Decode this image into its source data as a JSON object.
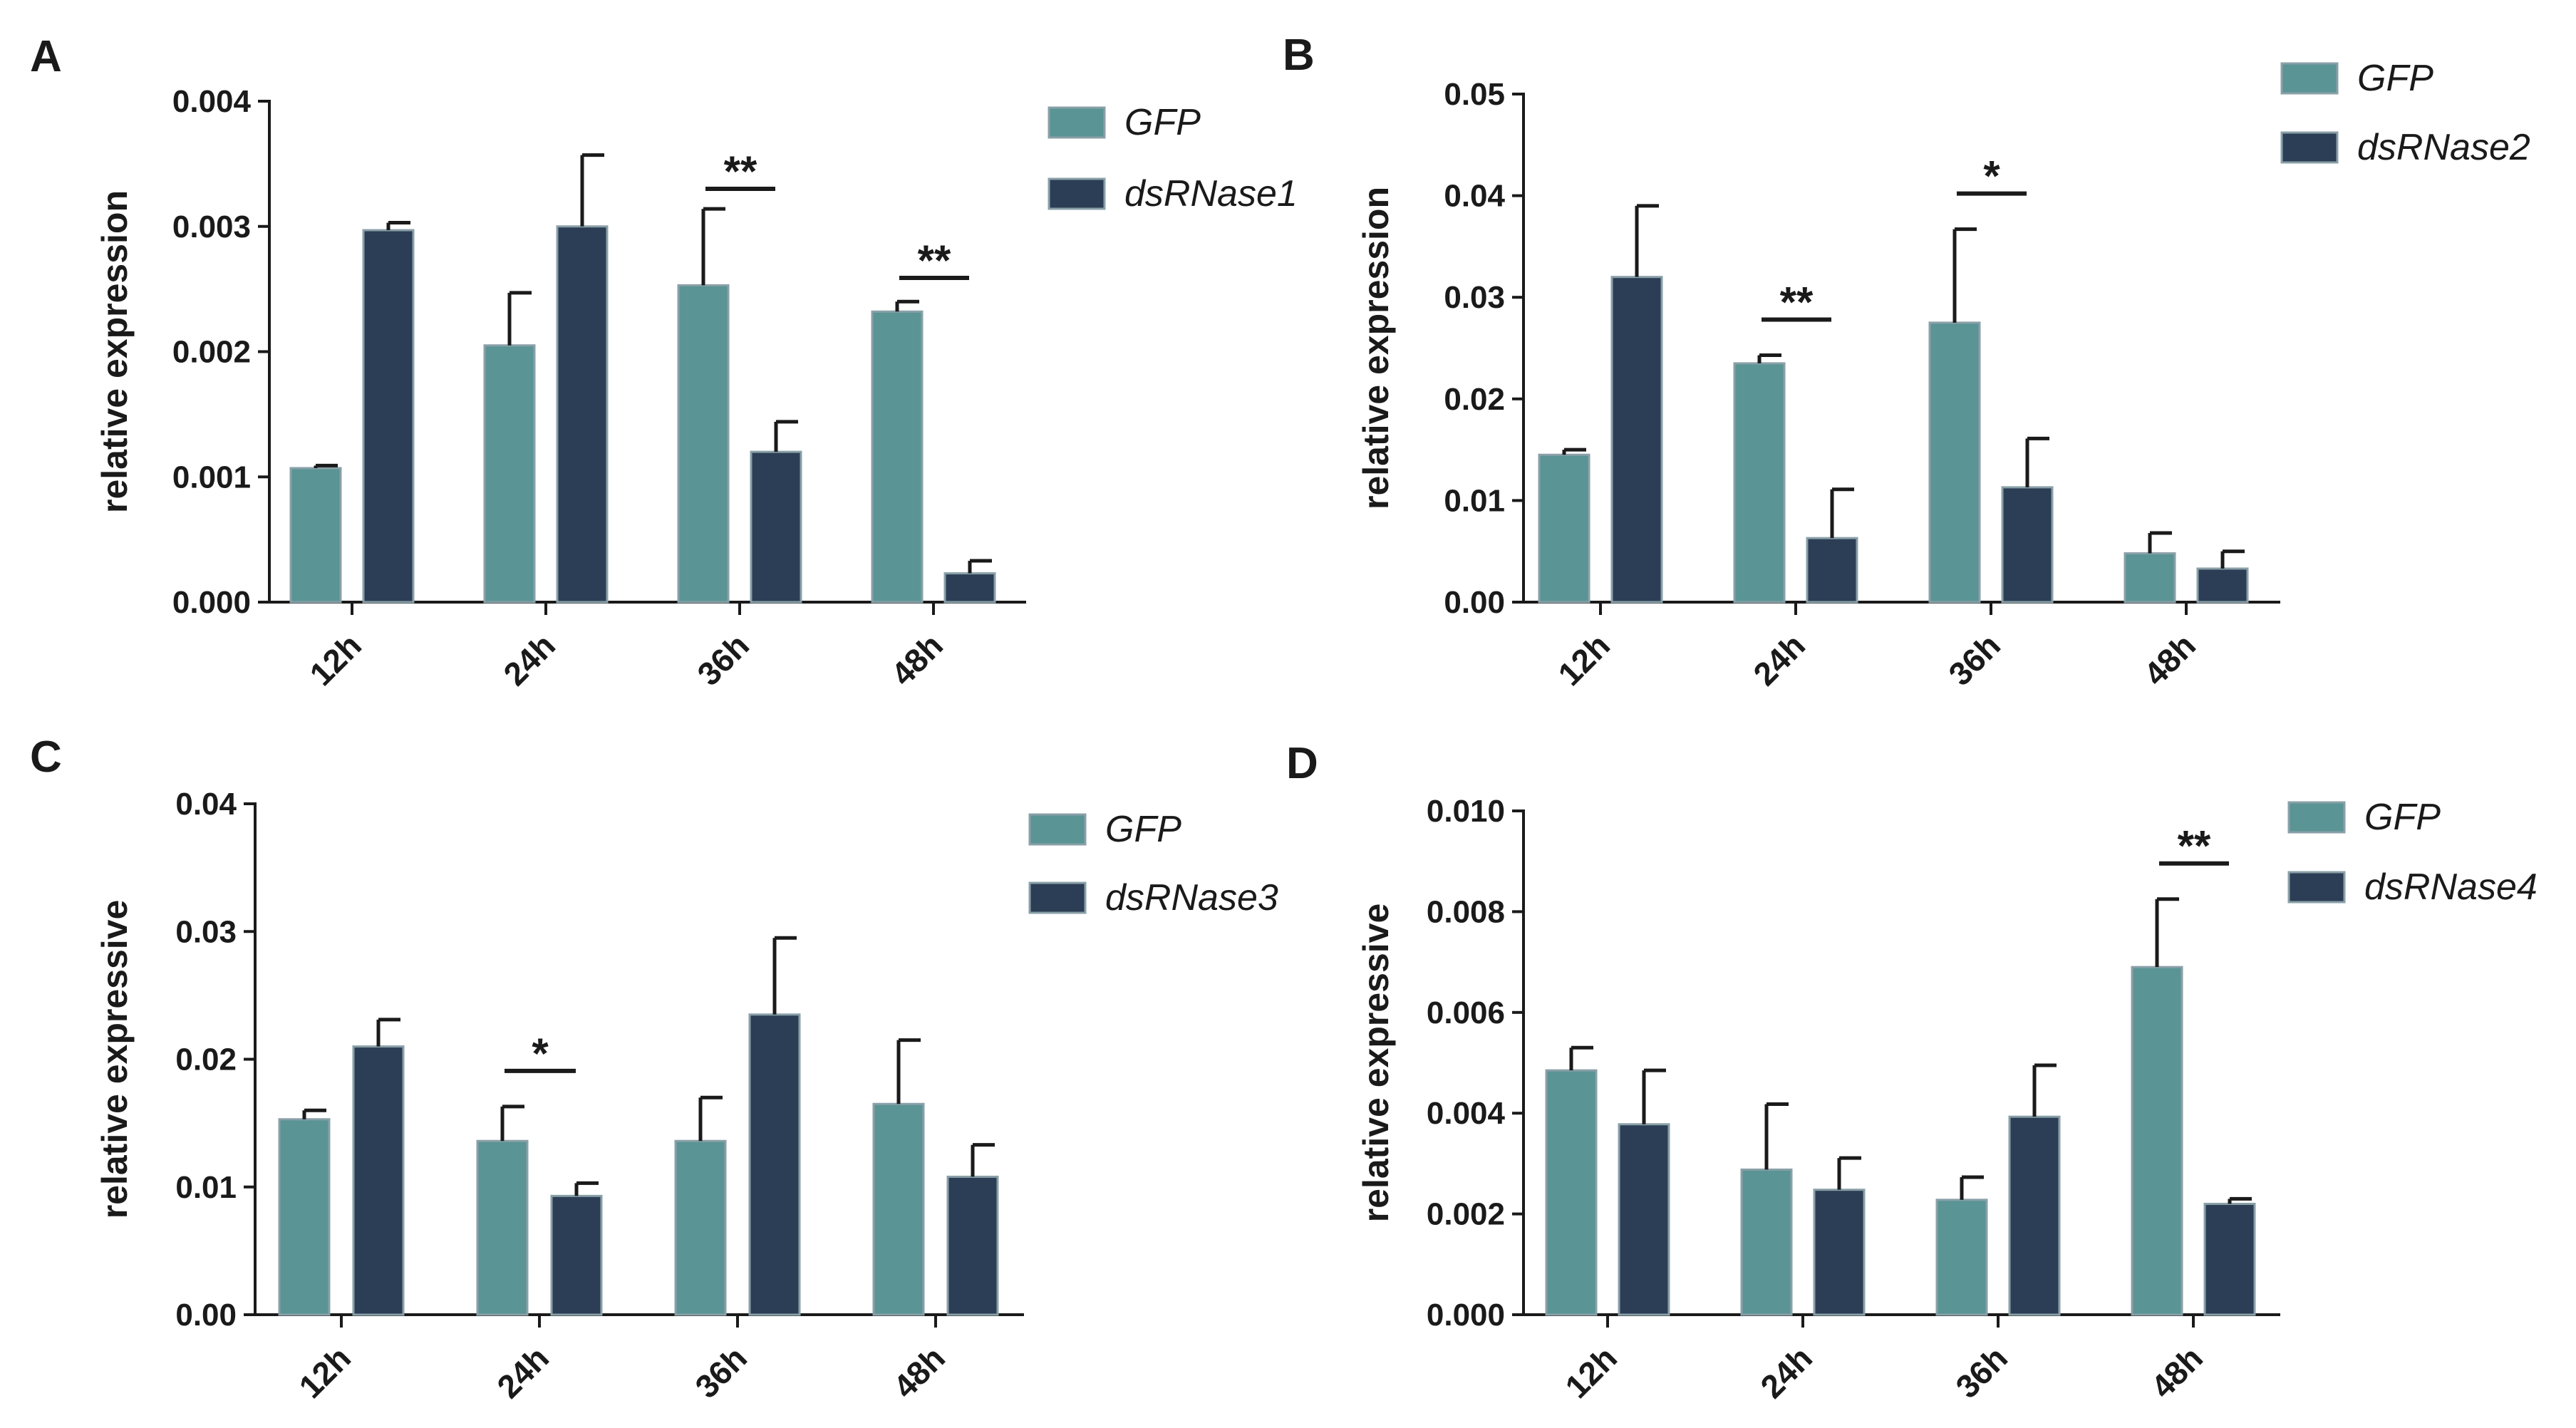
{
  "colors": {
    "gfp": "#5a9494",
    "dsrnase": "#2c3e55",
    "bar_edge": "#8aa0a8",
    "axis": "#1a1a1a"
  },
  "chart_data": [
    {
      "panel": "A",
      "type": "bar",
      "ylabel": "relative expression",
      "ylim": [
        0,
        0.004
      ],
      "yticks": [
        "0.000",
        "0.001",
        "0.002",
        "0.003",
        "0.004"
      ],
      "categories": [
        "12h",
        "24h",
        "36h",
        "48h"
      ],
      "series": [
        {
          "name": "GFP",
          "values": [
            0.00107,
            0.00205,
            0.00253,
            0.00232
          ],
          "errors": [
            2e-05,
            0.00042,
            0.00061,
            8e-05
          ]
        },
        {
          "name": "dsRNase1",
          "values": [
            0.00297,
            0.003,
            0.0012,
            0.00023
          ],
          "errors": [
            6e-05,
            0.00057,
            0.00024,
            0.0001
          ]
        }
      ],
      "significance": [
        {
          "category": "36h",
          "label": "**"
        },
        {
          "category": "48h",
          "label": "**"
        }
      ],
      "legend": "top-right"
    },
    {
      "panel": "B",
      "type": "bar",
      "ylabel": "relative expression",
      "ylim": [
        0,
        0.05
      ],
      "yticks": [
        "0.00",
        "0.01",
        "0.02",
        "0.03",
        "0.04",
        "0.05"
      ],
      "categories": [
        "12h",
        "24h",
        "36h",
        "48h"
      ],
      "series": [
        {
          "name": "GFP",
          "values": [
            0.0145,
            0.0235,
            0.0275,
            0.0048
          ],
          "errors": [
            0.0005,
            0.0008,
            0.0092,
            0.002
          ]
        },
        {
          "name": "dsRNase2",
          "values": [
            0.032,
            0.0063,
            0.0113,
            0.0033
          ],
          "errors": [
            0.007,
            0.0048,
            0.0048,
            0.0017
          ]
        }
      ],
      "significance": [
        {
          "category": "24h",
          "label": "**"
        },
        {
          "category": "36h",
          "label": "*"
        }
      ],
      "legend": "top-right"
    },
    {
      "panel": "C",
      "type": "bar",
      "ylabel": "relative expressive",
      "ylim": [
        0,
        0.04
      ],
      "yticks": [
        "0.00",
        "0.01",
        "0.02",
        "0.03",
        "0.04"
      ],
      "categories": [
        "12h",
        "24h",
        "36h",
        "48h"
      ],
      "series": [
        {
          "name": "GFP",
          "values": [
            0.0153,
            0.0136,
            0.0136,
            0.0165
          ],
          "errors": [
            0.0007,
            0.0027,
            0.0034,
            0.005
          ]
        },
        {
          "name": "dsRNase3",
          "values": [
            0.021,
            0.0093,
            0.0235,
            0.0108
          ],
          "errors": [
            0.0021,
            0.001,
            0.006,
            0.0025
          ]
        }
      ],
      "significance": [
        {
          "category": "24h",
          "label": "*"
        }
      ],
      "legend": "top-right"
    },
    {
      "panel": "D",
      "type": "bar",
      "ylabel": "relative expressive",
      "ylim": [
        0,
        0.01
      ],
      "yticks": [
        "0.000",
        "0.002",
        "0.004",
        "0.006",
        "0.008",
        "0.010"
      ],
      "categories": [
        "12h",
        "24h",
        "36h",
        "48h"
      ],
      "series": [
        {
          "name": "GFP",
          "values": [
            0.00485,
            0.00288,
            0.00228,
            0.0069
          ],
          "errors": [
            0.00045,
            0.0013,
            0.00045,
            0.00135
          ]
        },
        {
          "name": "dsRNase4",
          "values": [
            0.00378,
            0.00248,
            0.00393,
            0.0022
          ],
          "errors": [
            0.00107,
            0.00063,
            0.00102,
            0.0001
          ]
        }
      ],
      "significance": [
        {
          "category": "48h",
          "label": "**"
        }
      ],
      "legend": "top-right"
    }
  ]
}
